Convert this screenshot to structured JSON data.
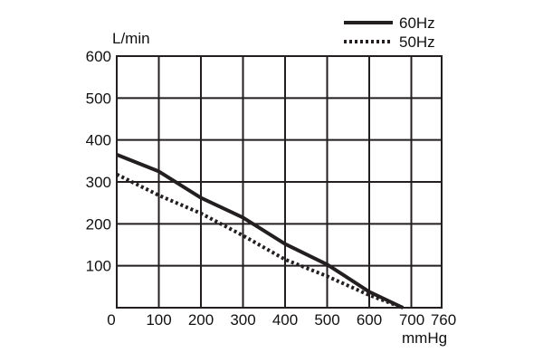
{
  "chart_data": {
    "type": "line",
    "xlabel": "mmHg",
    "ylabel": "L/min",
    "xlim": [
      0,
      760
    ],
    "ylim": [
      0,
      600
    ],
    "x_ticks": [
      0,
      100,
      200,
      300,
      400,
      500,
      600,
      700,
      760
    ],
    "y_ticks": [
      100,
      200,
      300,
      400,
      500,
      600
    ],
    "grid": true,
    "legend_position": "top-right",
    "series": [
      {
        "name": "60Hz",
        "style": "solid",
        "color": "#231f20",
        "x": [
          0,
          100,
          200,
          300,
          400,
          500,
          600,
          680
        ],
        "y": [
          365,
          325,
          262,
          215,
          152,
          103,
          38,
          0
        ]
      },
      {
        "name": "50Hz",
        "style": "dotted",
        "color": "#231f20",
        "x": [
          0,
          100,
          200,
          300,
          400,
          500,
          600,
          680
        ],
        "y": [
          318,
          268,
          225,
          172,
          115,
          75,
          30,
          0
        ]
      }
    ]
  }
}
